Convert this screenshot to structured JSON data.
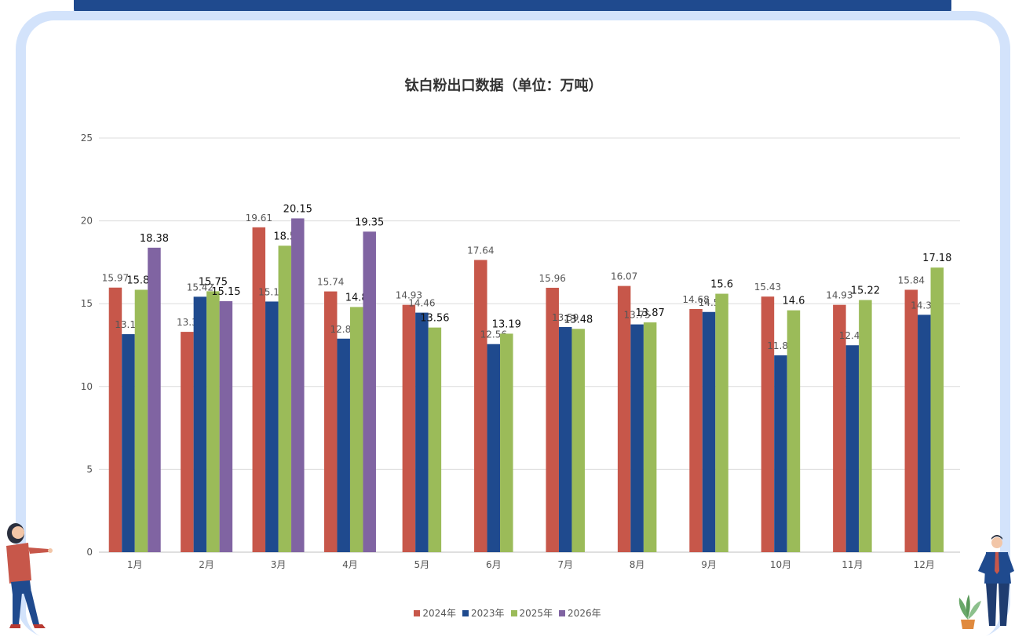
{
  "chart_data": {
    "type": "bar",
    "title": "钛白粉出口数据（单位：万吨）",
    "xlabel": "",
    "ylabel": "",
    "ylim": [
      0,
      25
    ],
    "yticks": [
      0,
      5,
      10,
      15,
      20,
      25
    ],
    "grid": true,
    "legend_position": "bottom",
    "categories": [
      "1月",
      "2月",
      "3月",
      "4月",
      "5月",
      "6月",
      "7月",
      "8月",
      "9月",
      "10月",
      "11月",
      "12月"
    ],
    "series": [
      {
        "name": "2024年",
        "color": "#c7574a",
        "values": [
          15.97,
          13.3,
          19.61,
          15.74,
          14.93,
          17.64,
          15.96,
          16.07,
          14.68,
          15.43,
          14.93,
          15.84
        ]
      },
      {
        "name": "2023年",
        "color": "#1f4a8e",
        "values": [
          13.16,
          15.42,
          15.13,
          12.89,
          14.46,
          12.56,
          13.59,
          13.75,
          14.5,
          11.88,
          12.49,
          14.33
        ]
      },
      {
        "name": "2025年",
        "color": "#9bbb59",
        "values": [
          15.84,
          15.75,
          18.5,
          14.8,
          13.56,
          13.19,
          13.48,
          13.87,
          15.6,
          14.6,
          15.22,
          17.18
        ]
      },
      {
        "name": "2026年",
        "color": "#8064a2",
        "values": [
          18.38,
          15.15,
          20.15,
          19.35,
          null,
          null,
          null,
          null,
          null,
          null,
          null,
          null
        ]
      }
    ]
  }
}
